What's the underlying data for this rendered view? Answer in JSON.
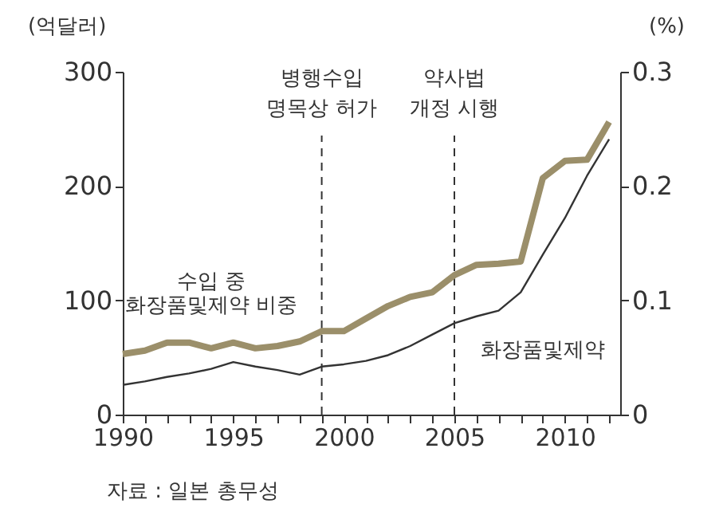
{
  "chart_data": {
    "type": "line",
    "ylabel": "(억달러)",
    "y2label": "(%)",
    "x": [
      1990,
      1991,
      1992,
      1993,
      1994,
      1995,
      1996,
      1997,
      1998,
      1999,
      2000,
      2001,
      2002,
      2003,
      2004,
      2005,
      2006,
      2007,
      2008,
      2009,
      2010,
      2011,
      2012
    ],
    "series": [
      {
        "name": "화장품및제약",
        "color": "#333333",
        "values": [
          26,
          29,
          33,
          36,
          40,
          46,
          42,
          39,
          35,
          42,
          44,
          47,
          52,
          60,
          70,
          80,
          86,
          91,
          107,
          140,
          172,
          209,
          241
        ]
      },
      {
        "name": "수입 중\n화장품및제약 비중",
        "color": "#9b8f6a",
        "axis": "y2",
        "values": [
          0.053,
          0.056,
          0.063,
          0.063,
          0.058,
          0.063,
          0.058,
          0.06,
          0.064,
          0.073,
          0.073,
          0.084,
          0.095,
          0.103,
          0.107,
          0.122,
          0.131,
          0.132,
          0.134,
          0.207,
          0.222,
          0.223,
          0.256
        ]
      }
    ],
    "xlim": [
      1990,
      2012.5
    ],
    "xticks": [
      1990,
      {
        "value": 1991,
        "label": null
      },
      {
        "value": 1992,
        "label": null
      },
      {
        "value": 1993,
        "label": null
      },
      {
        "value": 1994,
        "label": null
      },
      1995,
      {
        "value": 1996,
        "label": null
      },
      {
        "value": 1997,
        "label": null
      },
      {
        "value": 1998,
        "label": null
      },
      {
        "value": 1999,
        "label": null
      },
      2000,
      {
        "value": 2001,
        "label": null
      },
      {
        "value": 2002,
        "label": null
      },
      {
        "value": 2003,
        "label": null
      },
      {
        "value": 2004,
        "label": null
      },
      2005,
      {
        "value": 2006,
        "label": null
      },
      {
        "value": 2007,
        "label": null
      },
      {
        "value": 2008,
        "label": null
      },
      {
        "value": 2009,
        "label": null
      },
      2010,
      {
        "value": 2011,
        "label": null
      },
      {
        "value": 2012,
        "label": null
      }
    ],
    "ylim": [
      0,
      300
    ],
    "yticks": [
      0,
      100,
      200,
      300
    ],
    "y2lim": [
      0,
      0.3
    ],
    "y2ticks": [
      0,
      0.1,
      0.2,
      0.3
    ],
    "ref_lines": [
      {
        "axis": "x",
        "value": 1999,
        "label": "병행수입\n명목상 허가",
        "line_style": "dashed",
        "color": "#333333"
      },
      {
        "axis": "x",
        "value": 2005,
        "label": "약사법\n개정 시행",
        "line_style": "dashed",
        "color": "#333333"
      }
    ],
    "annotations": [
      "자료 : 일본 총무성"
    ],
    "grid": false,
    "marker": "none",
    "line_style": "solid"
  }
}
